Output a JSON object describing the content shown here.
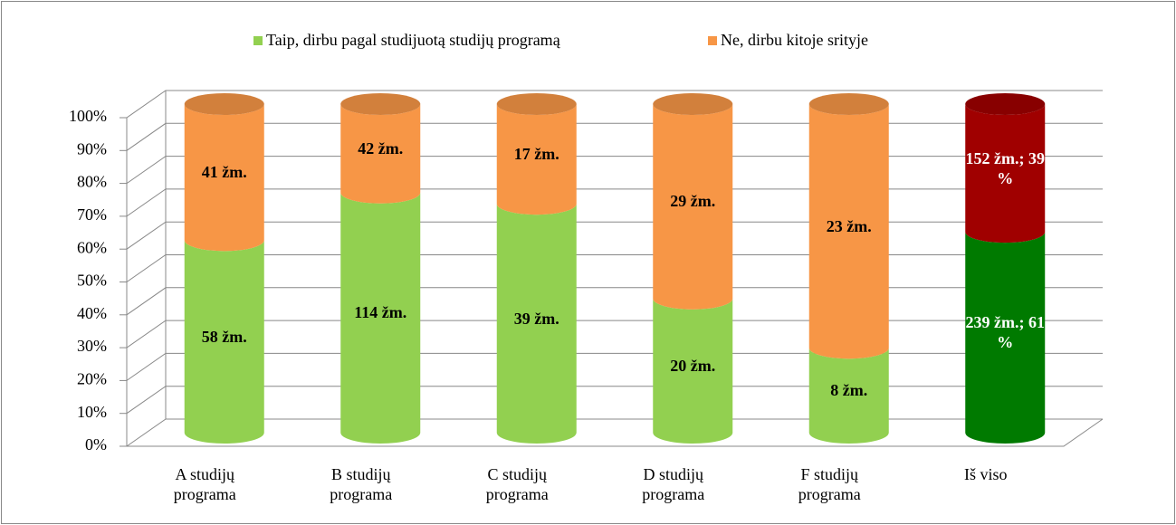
{
  "chart_data": {
    "type": "bar",
    "stacking": "percent",
    "legend": "top",
    "categories": [
      "A studijų programa",
      "B studijų programa",
      "C studijų programa",
      "D studijų programa",
      "F studijų programa",
      "Iš viso"
    ],
    "series": [
      {
        "name": "Taip, dirbu pagal studijuotą studijų programą",
        "color": "#92d050",
        "colors": [
          "#92d050",
          "#92d050",
          "#92d050",
          "#92d050",
          "#92d050",
          "#007a00"
        ],
        "value_label_colors": [
          "#000000",
          "#000000",
          "#000000",
          "#000000",
          "#000000",
          "#ffffff"
        ],
        "values": [
          58,
          114,
          39,
          20,
          8,
          239
        ],
        "value_labels": [
          "58 žm.",
          "114 žm.",
          "39 žm.",
          "20 žm.",
          "8 žm.",
          "239 žm.; 61 %"
        ]
      },
      {
        "name": "Ne, dirbu kitoje srityje",
        "color": "#f79646",
        "colors": [
          "#f79646",
          "#f79646",
          "#f79646",
          "#f79646",
          "#f79646",
          "#a00000"
        ],
        "value_label_colors": [
          "#000000",
          "#000000",
          "#000000",
          "#000000",
          "#000000",
          "#ffffff"
        ],
        "values": [
          41,
          42,
          17,
          29,
          23,
          152
        ],
        "value_labels": [
          "41 žm.",
          "42 žm.",
          "17 žm.",
          "29 žm.",
          "23 žm.",
          "152 žm.; 39 %"
        ]
      }
    ],
    "ylim": [
      0,
      100
    ],
    "yticks": [
      {
        "value": 0,
        "label": "0%"
      },
      {
        "value": 10,
        "label": "10%"
      },
      {
        "value": 20,
        "label": "20%"
      },
      {
        "value": 30,
        "label": "30%"
      },
      {
        "value": 40,
        "label": "40%"
      },
      {
        "value": 50,
        "label": "50%"
      },
      {
        "value": 60,
        "label": "60%"
      },
      {
        "value": 70,
        "label": "70%"
      },
      {
        "value": 80,
        "label": "80%"
      },
      {
        "value": 90,
        "label": "90%"
      },
      {
        "value": 100,
        "label": "100%"
      }
    ],
    "grid": true
  }
}
